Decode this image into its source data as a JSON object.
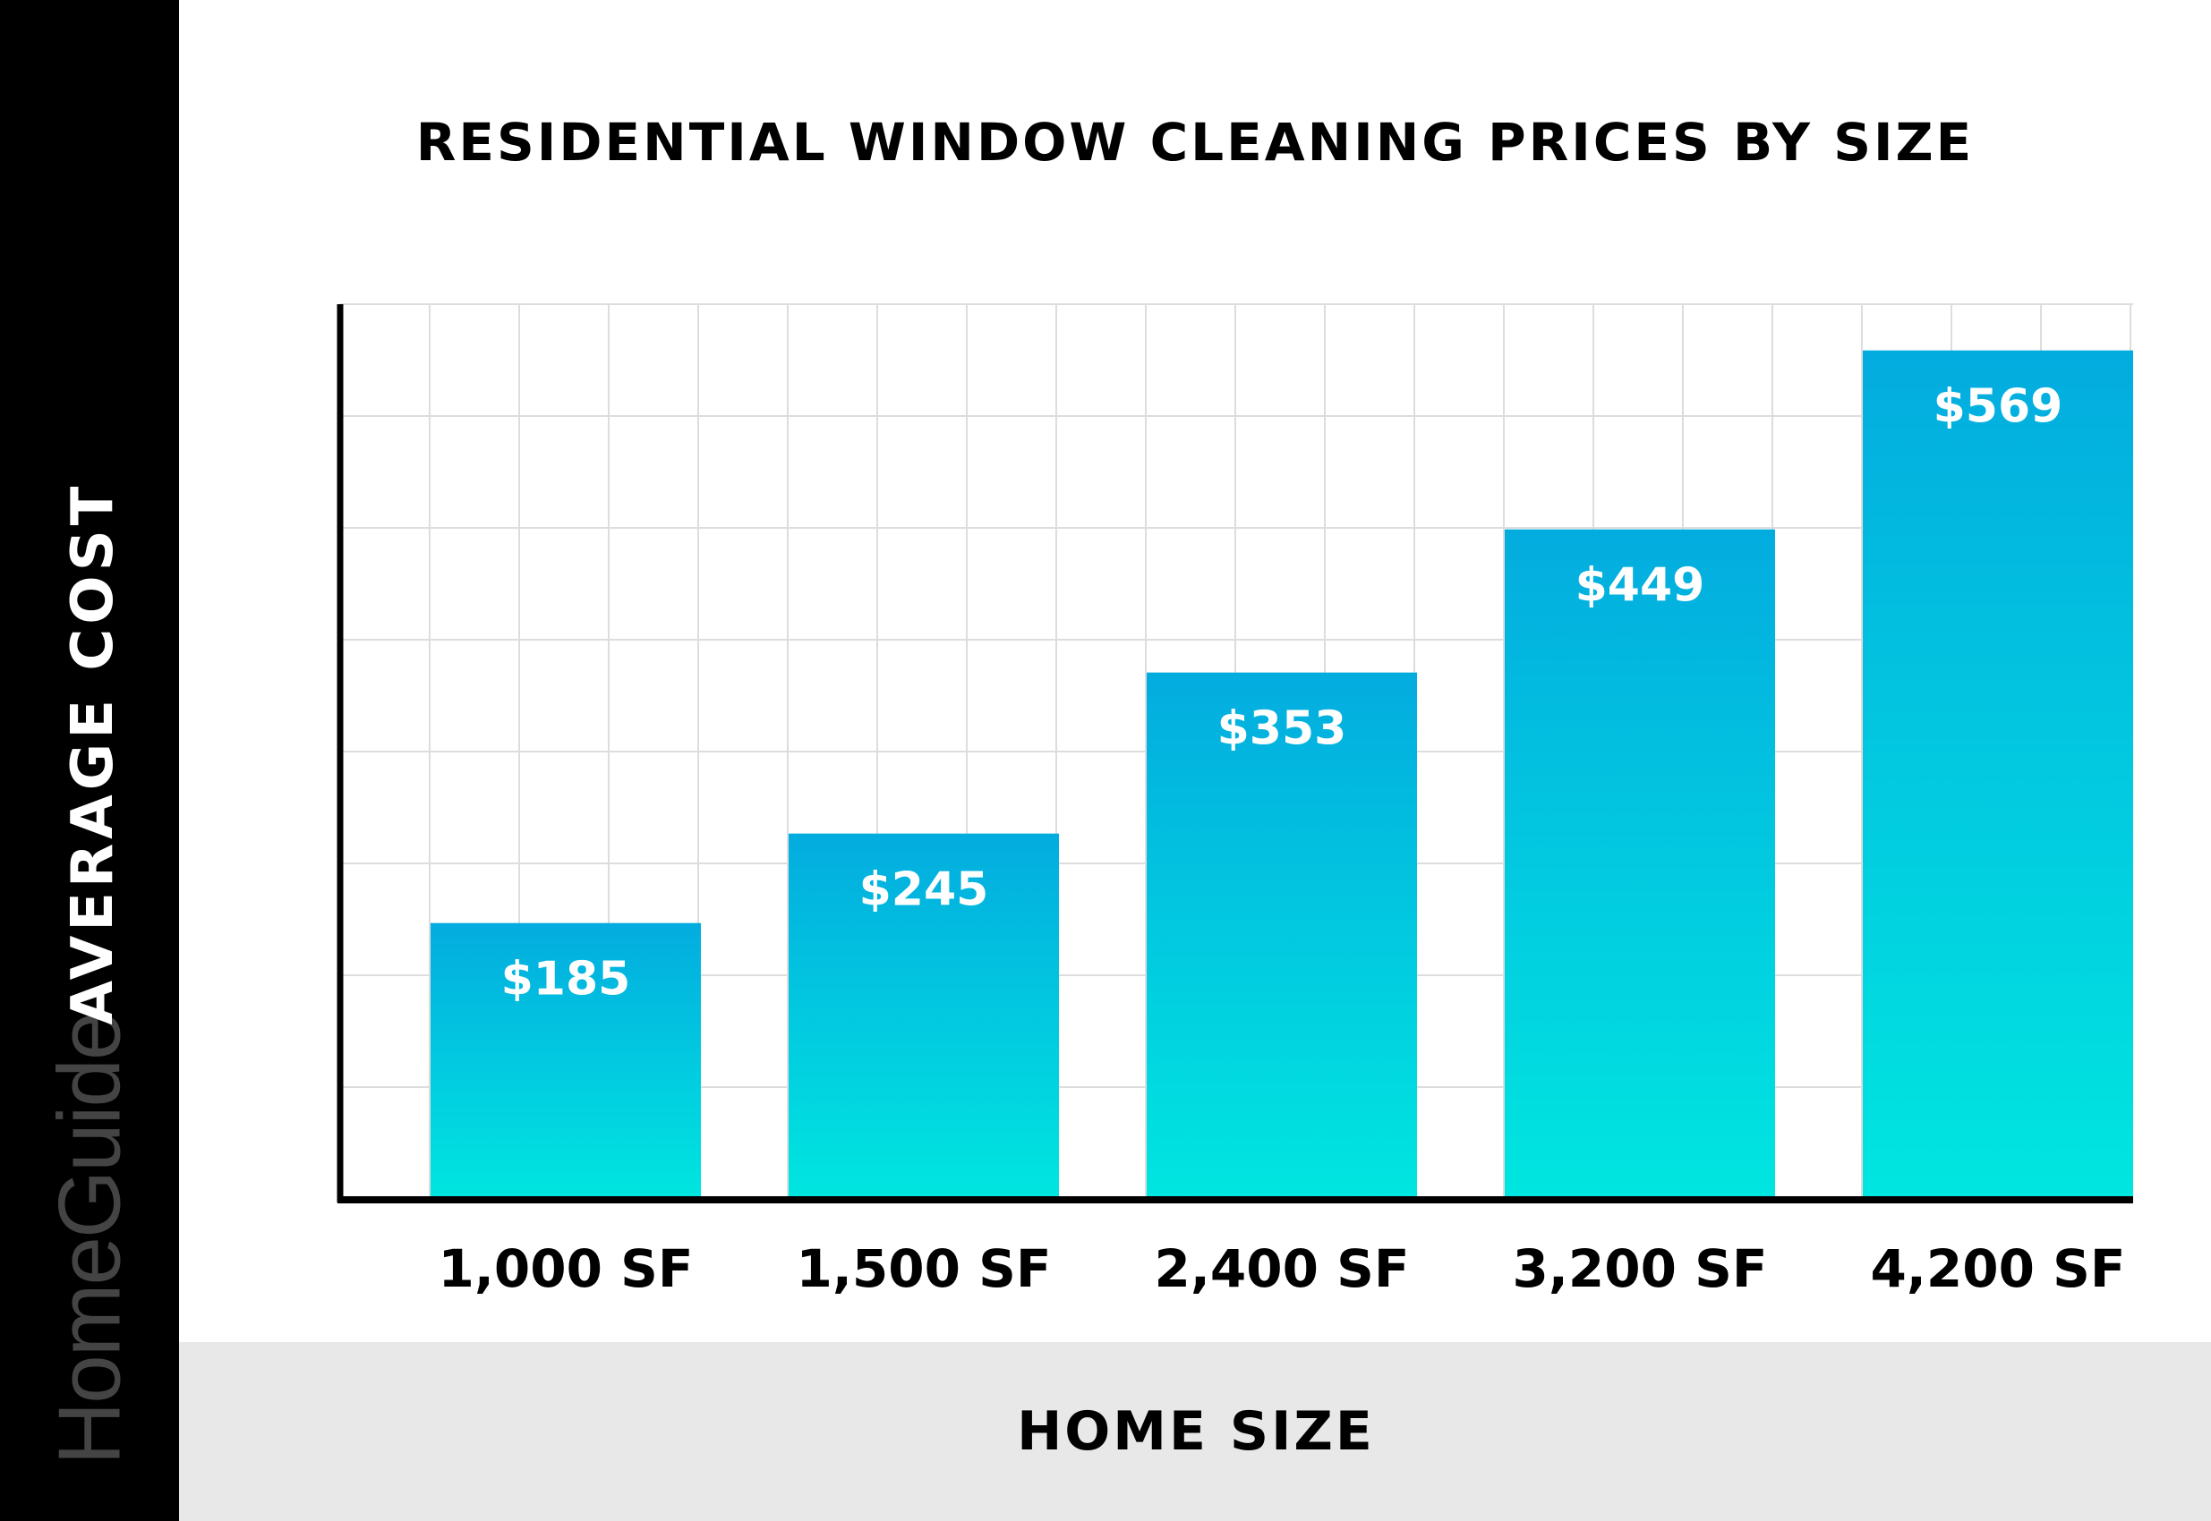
{
  "brand": "HomeGuide",
  "chart_data": {
    "type": "bar",
    "title": "RESIDENTIAL WINDOW CLEANING PRICES BY SIZE",
    "xlabel": "HOME SIZE",
    "ylabel": "AVERAGE COST",
    "categories": [
      "1,000 SF",
      "1,500 SF",
      "2,400 SF",
      "3,200 SF",
      "4,200 SF"
    ],
    "values": [
      185,
      245,
      353,
      449,
      569
    ],
    "data_labels": [
      "$185",
      "$245",
      "$353",
      "$449",
      "$569"
    ],
    "ylim": [
      0,
      600
    ],
    "grid": true,
    "y_tick_labels_shown": false,
    "colors": {
      "bar_top": "#03acdf",
      "bar_bottom": "#00e6e0",
      "grid": "#dddddd",
      "axis": "#000000",
      "side_band": "#000000",
      "x_band": "#e8e8e8"
    }
  }
}
